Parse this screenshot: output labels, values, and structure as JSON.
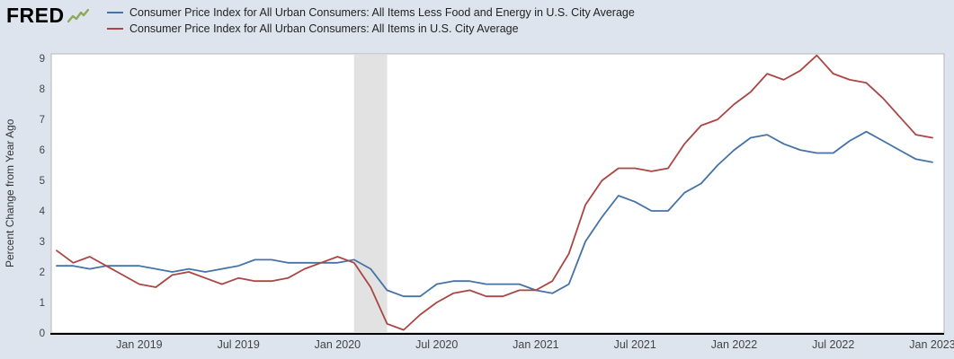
{
  "header": {
    "logo_text": "FRED"
  },
  "colors": {
    "page_background": "#dde4ee",
    "plot_background": "#ffffff",
    "plot_border": "#b6b6b6",
    "recession_band": "#e2e2e2",
    "axis_text": "#444444",
    "axis_line": "#000000",
    "logo_green": "#8bab58",
    "series_blue": "#4572a7",
    "series_red": "#aa4643"
  },
  "chart_data": {
    "type": "line",
    "title": "",
    "xlabel": "",
    "ylabel": "Percent Change from Year Ago",
    "frequency": "monthly",
    "x_start": "2018-08",
    "x_end": "2023-01",
    "ylim": [
      0,
      9.15
    ],
    "yticks": [
      0,
      1,
      2,
      3,
      4,
      5,
      6,
      7,
      8,
      9
    ],
    "xtick_labels": [
      "Jan 2019",
      "Jul 2019",
      "Jan 2020",
      "Jul 2020",
      "Jan 2021",
      "Jul 2021",
      "Jan 2022",
      "Jul 2022",
      "Jan 2023"
    ],
    "xtick_month_indices": [
      5,
      11,
      17,
      23,
      29,
      35,
      41,
      47,
      53
    ],
    "recession_band_month_indices": [
      18,
      20
    ],
    "grid": false,
    "legend_position": "top",
    "series": [
      {
        "name": "Consumer Price Index for All Urban Consumers: All Items Less Food and Energy in U.S. City Average",
        "color": "#4572a7",
        "values": [
          2.2,
          2.2,
          2.1,
          2.2,
          2.2,
          2.2,
          2.1,
          2.0,
          2.1,
          2.0,
          2.1,
          2.2,
          2.4,
          2.4,
          2.3,
          2.3,
          2.3,
          2.3,
          2.4,
          2.1,
          1.4,
          1.2,
          1.2,
          1.6,
          1.7,
          1.7,
          1.6,
          1.6,
          1.6,
          1.4,
          1.3,
          1.6,
          3.0,
          3.8,
          4.5,
          4.3,
          4.0,
          4.0,
          4.6,
          4.9,
          5.5,
          6.0,
          6.4,
          6.5,
          6.2,
          6.0,
          5.9,
          5.9,
          6.3,
          6.6,
          6.3,
          6.0,
          5.7,
          5.6
        ]
      },
      {
        "name": "Consumer Price Index for All Urban Consumers: All Items in U.S. City Average",
        "color": "#aa4643",
        "values": [
          2.7,
          2.3,
          2.5,
          2.2,
          1.9,
          1.6,
          1.5,
          1.9,
          2.0,
          1.8,
          1.6,
          1.8,
          1.7,
          1.7,
          1.8,
          2.1,
          2.3,
          2.5,
          2.3,
          1.5,
          0.3,
          0.1,
          0.6,
          1.0,
          1.3,
          1.4,
          1.2,
          1.2,
          1.4,
          1.4,
          1.7,
          2.6,
          4.2,
          5.0,
          5.4,
          5.4,
          5.3,
          5.4,
          6.2,
          6.8,
          7.0,
          7.5,
          7.9,
          8.5,
          8.3,
          8.6,
          9.1,
          8.5,
          8.3,
          8.2,
          7.7,
          7.1,
          6.5,
          6.4
        ]
      }
    ]
  }
}
